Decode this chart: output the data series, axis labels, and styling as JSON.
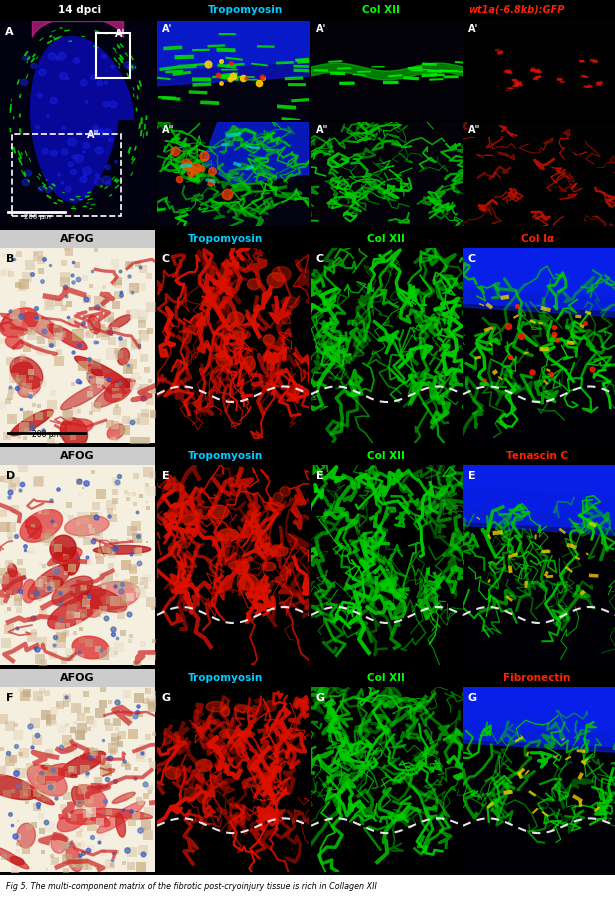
{
  "title": "Fig 5. The multi-component matrix of the fibrotic post-cryoinjury tissue is rich in Collagen XII",
  "header_text": "14 dpci",
  "col_labels_row1": [
    "Tropomyosin",
    "Col XII",
    "wt1a(-6.8kb):GFP"
  ],
  "col_labels_row2_C": [
    "Tropomyosin",
    "Col XII",
    "Col Iα"
  ],
  "col_labels_row3_E": [
    "Tropomyosin",
    "Col XII",
    "Tenascin C"
  ],
  "col_labels_row4_G": [
    "Tropomyosin",
    "Col XII",
    "Fibronectin"
  ],
  "scale_bar_text": "200 μm",
  "background_color": "#000000",
  "label_color_cyan": "#00ccff",
  "label_color_green": "#00ff00",
  "label_color_red": "#ff2200",
  "label_color_yellow": "#ffff00",
  "label_color_orange": "#ff8800",
  "afog_header_bg": "#dddddd",
  "fig_w": 615,
  "fig_h": 923
}
